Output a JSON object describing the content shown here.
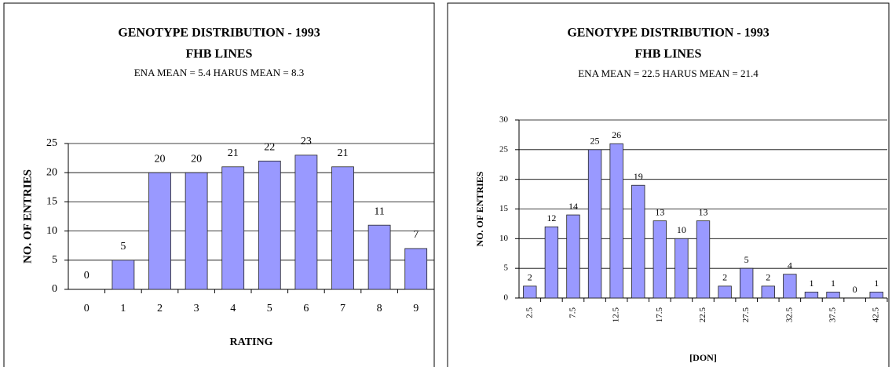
{
  "chart_data": [
    {
      "type": "bar",
      "title": "GENOTYPE DISTRIBUTION - 1993",
      "subtitle": "FHB LINES",
      "note": "ENA MEAN = 5.4 HARUS MEAN = 8.3",
      "categories": [
        "0",
        "1",
        "2",
        "3",
        "4",
        "5",
        "6",
        "7",
        "8",
        "9"
      ],
      "values": [
        0,
        5,
        20,
        20,
        21,
        22,
        23,
        21,
        11,
        7
      ],
      "color": "#9999ff",
      "ylim": [
        0,
        25
      ],
      "yticks": [
        0,
        5,
        10,
        15,
        20,
        25
      ],
      "grid": true,
      "ylabel": "NO. OF ENTRIES",
      "xlabel": "RATING"
    },
    {
      "type": "bar",
      "title": "GENOTYPE DISTRIBUTION - 1993",
      "subtitle": "FHB LINES",
      "note": "ENA MEAN = 22.5  HARUS MEAN = 21.4",
      "categories": [
        "2.5",
        null,
        "7.5",
        null,
        "12.5",
        null,
        "17.5",
        null,
        "22.5",
        null,
        "27.5",
        null,
        "32.5",
        null,
        "37.5",
        null,
        "42.5"
      ],
      "values": [
        2,
        12,
        14,
        25,
        26,
        19,
        13,
        10,
        13,
        2,
        5,
        2,
        4,
        1,
        1,
        0,
        1
      ],
      "color": "#9999ff",
      "ylim": [
        0,
        30
      ],
      "yticks": [
        0,
        5,
        10,
        15,
        20,
        25,
        30
      ],
      "grid": true,
      "ylabel": "NO. OF ENTRIES",
      "xlabel": "[DON]"
    }
  ]
}
